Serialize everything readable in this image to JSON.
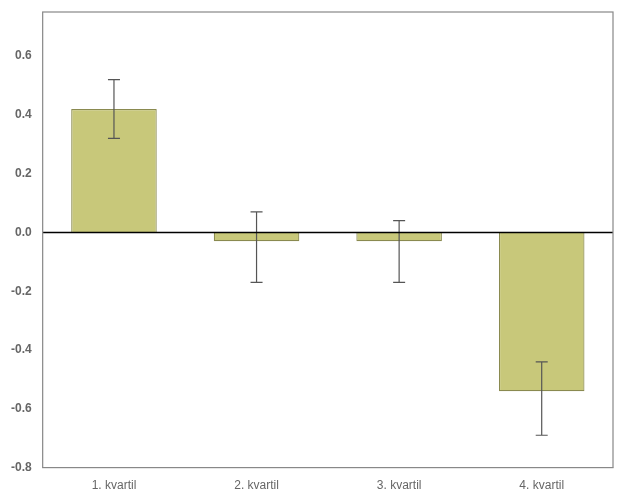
{
  "chart_data": {
    "type": "bar",
    "categories": [
      "1. kvartil",
      "2. kvartil",
      "3. kvartil",
      "4. kvartil"
    ],
    "values": [
      0.42,
      -0.03,
      -0.03,
      -0.54
    ],
    "errors_upper": [
      0.1,
      0.1,
      0.07,
      0.1
    ],
    "errors_lower": [
      0.1,
      0.14,
      0.14,
      0.15
    ],
    "color": "#c8c87a",
    "ylim": [
      -0.8,
      0.75
    ],
    "yticks": [
      -0.8,
      -0.6,
      -0.4,
      -0.2,
      {
        "value": 0,
        "label": "0.0"
      },
      0.2,
      0.4,
      0.6
    ],
    "grid": false
  }
}
